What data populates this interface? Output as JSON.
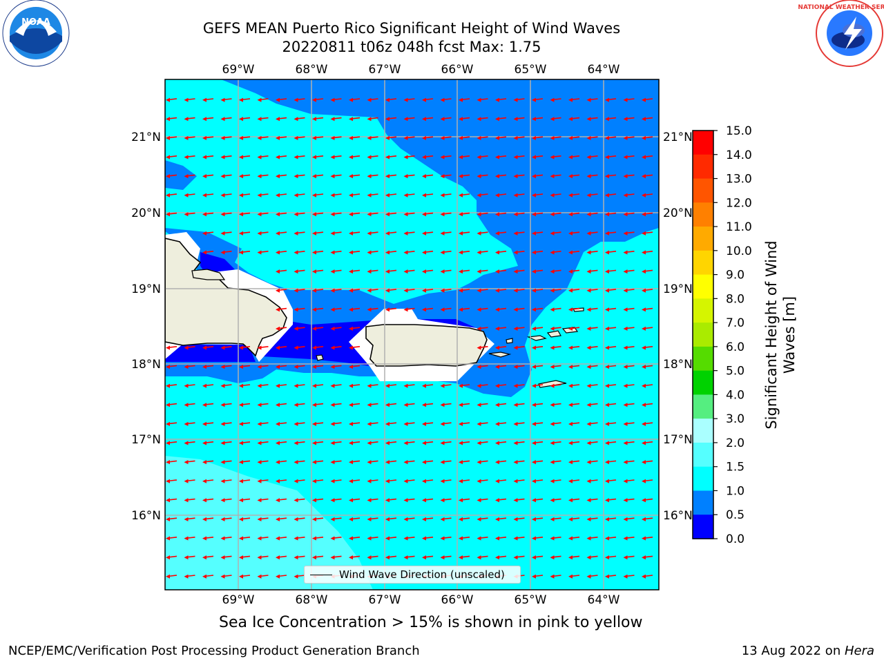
{
  "header": {
    "title_line1": "GEFS MEAN Puerto Rico Significant Height of Wind Waves",
    "title_line2": "20220811 t06z 048h fcst   Max: 1.75"
  },
  "logos": {
    "left": {
      "name": "NOAA",
      "ring_text": "NATIONAL OCEANIC AND ATMOSPHERIC ADMINISTRATION · U.S. DEPARTMENT OF COMMERCE",
      "center_text": "NOAA"
    },
    "right": {
      "name": "National Weather Service",
      "ring_text": "NATIONAL WEATHER SERVICE"
    }
  },
  "map": {
    "lon_labels": [
      "69°W",
      "68°W",
      "67°W",
      "66°W",
      "65°W",
      "64°W"
    ],
    "lat_labels": [
      "21°N",
      "20°N",
      "19°N",
      "18°N",
      "17°N",
      "16°N"
    ],
    "legend_label": "Wind Wave Direction (unscaled)",
    "arrow_color": "#ff0000",
    "land_color": "#eeeedd",
    "grid_color": "#b0b0b0"
  },
  "colorbar": {
    "label": "Significant Height of Wind Waves [m]",
    "ticks": [
      "15.0",
      "14.0",
      "13.0",
      "12.0",
      "11.0",
      "10.0",
      "9.0",
      "8.0",
      "7.0",
      "6.0",
      "5.0",
      "4.0",
      "3.0",
      "2.0",
      "1.5",
      "1.0",
      "0.5",
      "0.0"
    ],
    "colors": [
      "#ff0000",
      "#ff2a00",
      "#ff5500",
      "#ff8000",
      "#ffaa00",
      "#ffd500",
      "#ffff00",
      "#d5f500",
      "#aaeb00",
      "#55dc00",
      "#00d200",
      "#55ee80",
      "#aaffff",
      "#55ffff",
      "#00ffff",
      "#0080ff",
      "#0000ff"
    ]
  },
  "caption": "Sea Ice Concentration > 15% is shown in pink to yellow",
  "footer": {
    "left": "NCEP/EMC/Verification Post Processing Product Generation Branch",
    "right_date": "13 Aug 2022 on ",
    "right_host": "Hera"
  }
}
